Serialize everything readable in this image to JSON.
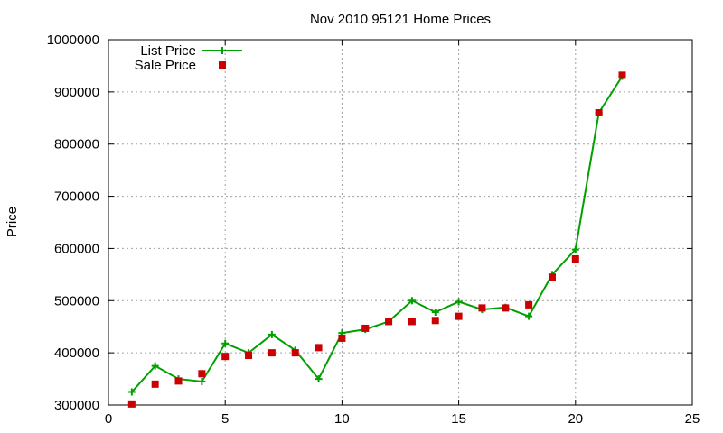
{
  "chart_data": {
    "type": "line",
    "title": "Nov 2010 95121 Home Prices",
    "xlabel": "",
    "ylabel": "Price",
    "xlim": [
      0,
      25
    ],
    "ylim": [
      300000,
      1000000
    ],
    "xticks": [
      0,
      5,
      10,
      15,
      20,
      25
    ],
    "yticks": [
      300000,
      400000,
      500000,
      600000,
      700000,
      800000,
      900000,
      1000000
    ],
    "grid": true,
    "legend_position": "top-left",
    "series": [
      {
        "name": "List Price",
        "style": "line+cross",
        "color": "#00a000",
        "x": [
          1,
          2,
          3,
          4,
          5,
          6,
          7,
          8,
          9,
          10,
          11,
          12,
          13,
          14,
          15,
          16,
          17,
          18,
          19,
          20,
          21,
          22
        ],
        "y": [
          325000,
          375000,
          350000,
          345000,
          418000,
          400000,
          435000,
          405000,
          350000,
          438000,
          445000,
          460000,
          500000,
          478000,
          498000,
          483000,
          487000,
          470000,
          550000,
          598000,
          860000,
          930000
        ]
      },
      {
        "name": "Sale Price",
        "style": "square",
        "color": "#cc0000",
        "x": [
          1,
          2,
          3,
          4,
          5,
          6,
          7,
          8,
          9,
          10,
          11,
          12,
          13,
          14,
          15,
          16,
          17,
          18,
          19,
          20,
          21,
          22
        ],
        "y": [
          302000,
          340000,
          346000,
          360000,
          393000,
          395000,
          400000,
          400000,
          410000,
          428000,
          447000,
          460000,
          460000,
          462000,
          470000,
          486000,
          486000,
          492000,
          545000,
          580000,
          860000,
          932000
        ]
      }
    ]
  }
}
